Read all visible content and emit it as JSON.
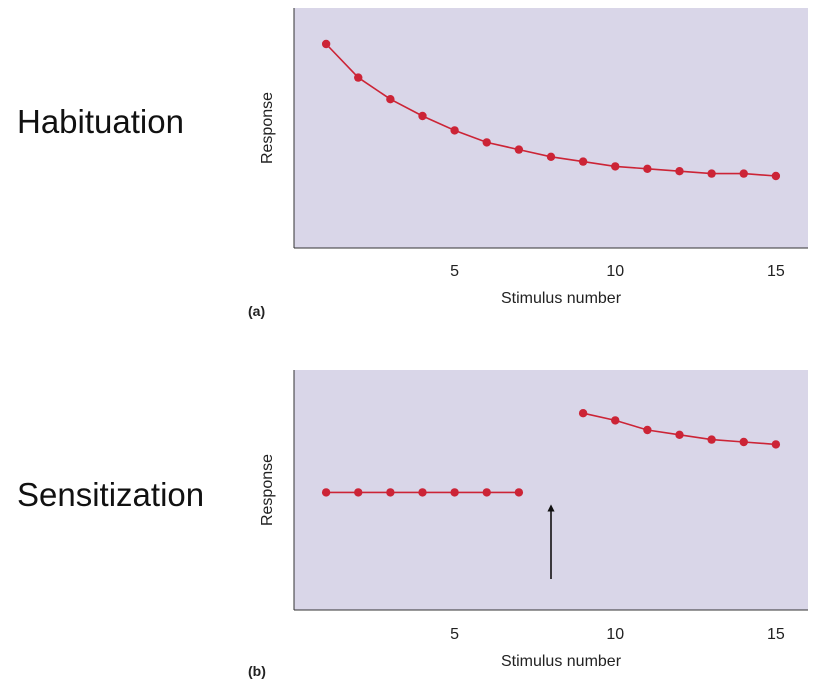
{
  "side_labels": {
    "top": "Habituation",
    "bottom": "Sensitization"
  },
  "colors": {
    "panel_bg": "#d9d6e8",
    "series": "#cc2436",
    "axis": "#333333",
    "arrow": "#111111"
  },
  "chart_data": [
    {
      "type": "line",
      "panel_label": "(a)",
      "xlabel": "Stimulus number",
      "ylabel": "Response",
      "xlim": [
        0,
        16
      ],
      "ylim": [
        0,
        100
      ],
      "xticks": [
        5,
        10,
        15
      ],
      "grid": false,
      "series": [
        {
          "x": [
            1,
            2,
            3,
            4,
            5,
            6,
            7,
            8,
            9,
            10,
            11,
            12,
            13,
            14,
            15
          ],
          "values": [
            85,
            71,
            62,
            55,
            49,
            44,
            41,
            38,
            36,
            34,
            33,
            32,
            31,
            31,
            30
          ]
        }
      ]
    },
    {
      "type": "line",
      "panel_label": "(b)",
      "xlabel": "Stimulus number",
      "ylabel": "Response",
      "xlim": [
        0,
        16
      ],
      "ylim": [
        0,
        100
      ],
      "xticks": [
        5,
        10,
        15
      ],
      "grid": false,
      "arrow_at_x": 8,
      "series": [
        {
          "x": [
            1,
            2,
            3,
            4,
            5,
            6,
            7
          ],
          "values": [
            49,
            49,
            49,
            49,
            49,
            49,
            49
          ]
        },
        {
          "x": [
            9,
            10,
            11,
            12,
            13,
            14,
            15
          ],
          "values": [
            82,
            79,
            75,
            73,
            71,
            70,
            69
          ]
        }
      ]
    }
  ]
}
